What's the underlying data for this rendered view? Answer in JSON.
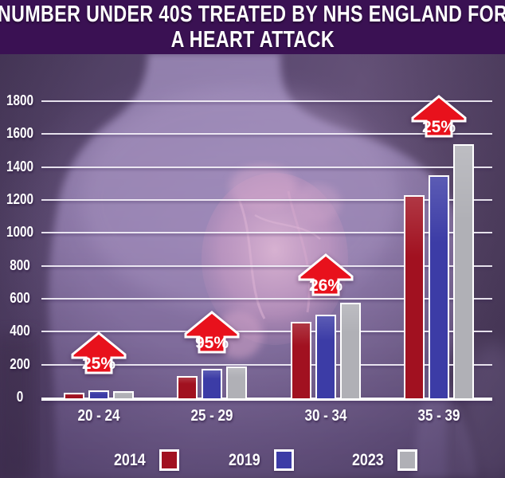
{
  "title": {
    "line1": "NUMBER UNDER 40S TREATED BY NHS ENGLAND FOR",
    "line2": "A HEART ATTACK"
  },
  "colors": {
    "title_bg": "#3a1153",
    "series_2014": "#a11120",
    "series_2019": "#3c3ca6",
    "series_2023": "#b0b0b6",
    "arrow_red": "#e8111c",
    "grid_line": "#ffffff",
    "label_text": "#ffffff"
  },
  "chart_data": {
    "type": "bar",
    "title": "Number under 40s treated by NHS England for a heart attack",
    "categories": [
      "20 - 24",
      "25 - 29",
      "30 - 34",
      "35 - 39"
    ],
    "series": [
      {
        "name": "2014",
        "color": "#a11120",
        "values": [
          30,
          130,
          460,
          1230
        ]
      },
      {
        "name": "2019",
        "color": "#3c3ca6",
        "values": [
          42,
          172,
          505,
          1350
        ]
      },
      {
        "name": "2023",
        "color": "#b0b0b6",
        "values": [
          38,
          188,
          575,
          1540
        ]
      }
    ],
    "annotations": [
      {
        "category": "20 - 24",
        "label": "25%"
      },
      {
        "category": "25 - 29",
        "label": "95%"
      },
      {
        "category": "30 - 34",
        "label": "26%"
      },
      {
        "category": "35 - 39",
        "label": "25%"
      }
    ],
    "y_ticks": [
      0,
      200,
      400,
      600,
      800,
      1000,
      1200,
      1400,
      1600,
      1800
    ],
    "ylim": [
      0,
      1800
    ],
    "xlabel": "",
    "ylabel": "",
    "grid": true,
    "legend_position": "bottom"
  }
}
